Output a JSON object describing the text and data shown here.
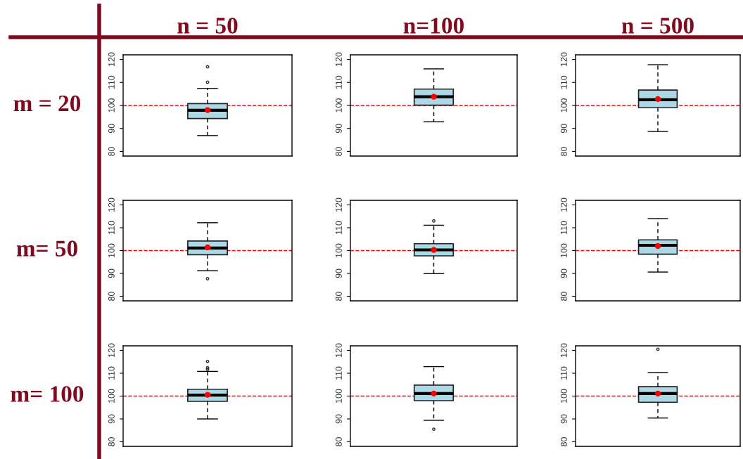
{
  "chart_data": [
    {
      "type": "box",
      "title": "n = 50",
      "ylabel": "m = 20",
      "categories": [
        null
      ],
      "boxes": [
        {
          "low": 86.9,
          "q1": 94.3,
          "median": 97.9,
          "q3": 100.8,
          "high": 107.4,
          "mean": 98.0,
          "outliers": [
            110.1,
            116.8
          ]
        }
      ],
      "color": "#add8e6",
      "ylim": [
        78,
        122
      ],
      "yticks": [
        80,
        90,
        100,
        110,
        120
      ],
      "grid": false,
      "ref_lines": [
        {
          "axis": "y",
          "value": 100,
          "color": "#ff0000",
          "line_style": "dashed"
        }
      ]
    },
    {
      "type": "box",
      "title": "n=100",
      "categories": [
        null
      ],
      "boxes": [
        {
          "low": 92.9,
          "q1": 100.1,
          "median": 103.8,
          "q3": 107.1,
          "high": 115.9,
          "mean": 103.8
        }
      ],
      "color": "#add8e6",
      "ylim": [
        78,
        122
      ],
      "yticks": [
        80,
        90,
        100,
        110,
        120
      ],
      "grid": false,
      "ref_lines": [
        {
          "axis": "y",
          "value": 100,
          "color": "#ff0000",
          "line_style": "dashed"
        }
      ]
    },
    {
      "type": "box",
      "title": "n = 500",
      "categories": [
        null
      ],
      "boxes": [
        {
          "low": 88.7,
          "q1": 99.0,
          "median": 102.5,
          "q3": 106.7,
          "high": 117.7,
          "mean": 102.8
        }
      ],
      "color": "#add8e6",
      "ylim": [
        78,
        122
      ],
      "yticks": [
        80,
        90,
        100,
        110,
        120
      ],
      "grid": false,
      "ref_lines": [
        {
          "axis": "y",
          "value": 100,
          "color": "#ff0000",
          "line_style": "dashed"
        }
      ]
    },
    {
      "type": "box",
      "ylabel": "m= 50",
      "categories": [
        null
      ],
      "boxes": [
        {
          "low": 91.2,
          "q1": 98.2,
          "median": 101.1,
          "q3": 104.2,
          "high": 112.2,
          "mean": 101.4,
          "outliers": [
            87.7
          ]
        }
      ],
      "color": "#add8e6",
      "ylim": [
        78,
        122
      ],
      "yticks": [
        80,
        90,
        100,
        110,
        120
      ],
      "grid": false,
      "ref_lines": [
        {
          "axis": "y",
          "value": 100,
          "color": "#ff0000",
          "line_style": "dashed"
        }
      ]
    },
    {
      "type": "box",
      "categories": [
        null
      ],
      "boxes": [
        {
          "low": 89.9,
          "q1": 97.7,
          "median": 100.3,
          "q3": 103.0,
          "high": 111.1,
          "mean": 100.3,
          "outliers": [
            113.0
          ]
        }
      ],
      "color": "#add8e6",
      "ylim": [
        78,
        122
      ],
      "yticks": [
        80,
        90,
        100,
        110,
        120
      ],
      "grid": false,
      "ref_lines": [
        {
          "axis": "y",
          "value": 100,
          "color": "#ff0000",
          "line_style": "dashed"
        }
      ]
    },
    {
      "type": "box",
      "categories": [
        null
      ],
      "boxes": [
        {
          "low": 90.6,
          "q1": 98.4,
          "median": 102.3,
          "q3": 104.7,
          "high": 114.0,
          "mean": 102.0
        }
      ],
      "color": "#add8e6",
      "ylim": [
        78,
        122
      ],
      "yticks": [
        80,
        90,
        100,
        110,
        120
      ],
      "grid": false,
      "ref_lines": [
        {
          "axis": "y",
          "value": 100,
          "color": "#ff0000",
          "line_style": "dashed"
        }
      ]
    },
    {
      "type": "box",
      "ylabel": "m= 100",
      "categories": [
        null
      ],
      "boxes": [
        {
          "low": 90.0,
          "q1": 97.7,
          "median": 100.4,
          "q3": 103.0,
          "high": 110.8,
          "mean": 100.6,
          "outliers": [
            111.7,
            112.4,
            115.2
          ]
        }
      ],
      "color": "#add8e6",
      "ylim": [
        78,
        122
      ],
      "yticks": [
        80,
        90,
        100,
        110,
        120
      ],
      "grid": false,
      "ref_lines": [
        {
          "axis": "y",
          "value": 100,
          "color": "#ff0000",
          "line_style": "dashed"
        }
      ]
    },
    {
      "type": "box",
      "categories": [
        null
      ],
      "boxes": [
        {
          "low": 89.4,
          "q1": 98.0,
          "median": 101.1,
          "q3": 104.8,
          "high": 112.9,
          "mean": 101.1,
          "outliers": [
            85.5
          ]
        }
      ],
      "color": "#add8e6",
      "ylim": [
        78,
        122
      ],
      "yticks": [
        80,
        90,
        100,
        110,
        120
      ],
      "grid": false,
      "ref_lines": [
        {
          "axis": "y",
          "value": 100,
          "color": "#ff0000",
          "line_style": "dashed"
        }
      ]
    },
    {
      "type": "box",
      "categories": [
        null
      ],
      "boxes": [
        {
          "low": 90.4,
          "q1": 97.3,
          "median": 101.1,
          "q3": 104.1,
          "high": 110.3,
          "mean": 101.1,
          "outliers": [
            120.5
          ]
        }
      ],
      "color": "#add8e6",
      "ylim": [
        78,
        122
      ],
      "yticks": [
        80,
        90,
        100,
        110,
        120
      ],
      "grid": false,
      "ref_lines": [
        {
          "axis": "y",
          "value": 100,
          "color": "#ff0000",
          "line_style": "dashed"
        }
      ]
    }
  ]
}
